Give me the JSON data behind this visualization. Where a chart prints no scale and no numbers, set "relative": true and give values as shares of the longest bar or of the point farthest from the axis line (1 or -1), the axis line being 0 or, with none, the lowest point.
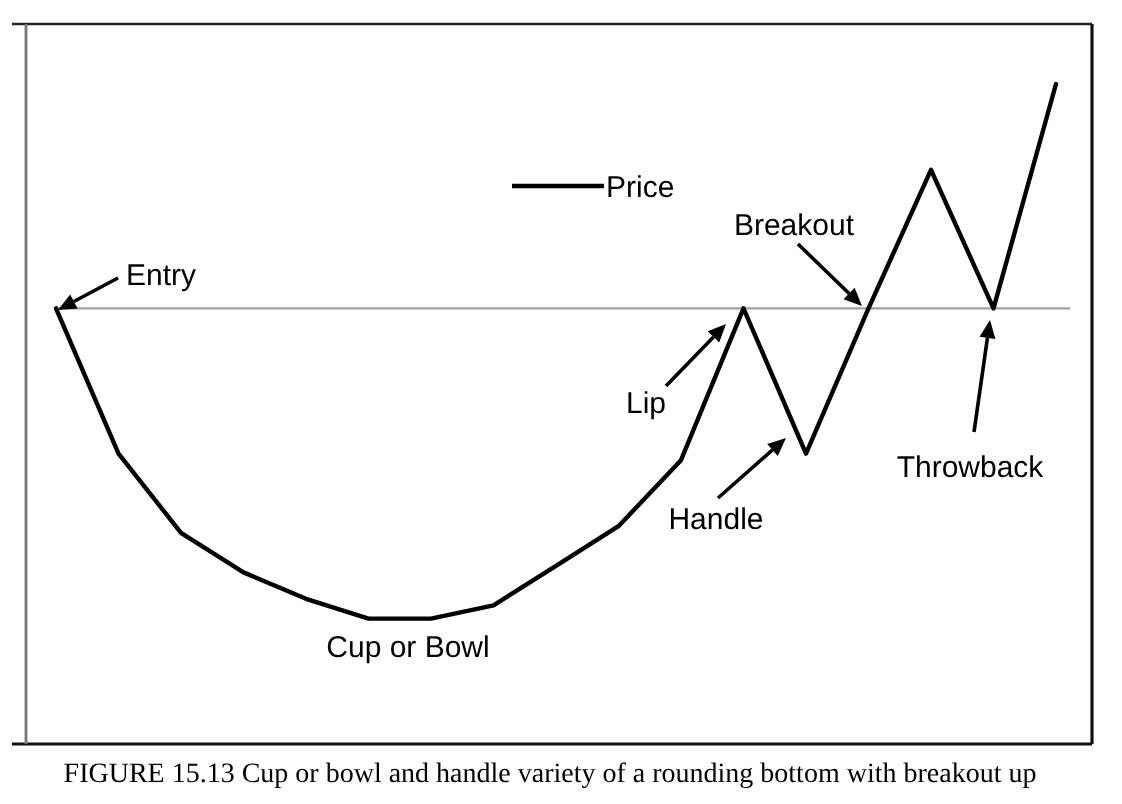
{
  "chart_data": {
    "type": "line",
    "relative": true,
    "categories": [
      null,
      null,
      null,
      null,
      null,
      null,
      null,
      null,
      null,
      null,
      null,
      null,
      null,
      null,
      null,
      null,
      null
    ],
    "series": [
      {
        "name": "Price",
        "color": "#000000",
        "values": [
          0.66,
          0.44,
          0.32,
          0.26,
          0.22,
          0.19,
          0.19,
          0.21,
          0.27,
          0.33,
          0.43,
          0.66,
          0.44,
          0.66,
          0.87,
          0.66,
          1
        ]
      }
    ],
    "ref_lines": [
      {
        "axis": "y",
        "value": 0.66,
        "color": "#a0a0a0"
      }
    ],
    "legend": "top",
    "annotations": [
      "Entry",
      "Breakout",
      "Lip",
      "Throwback",
      "Handle",
      "Cup or Bowl",
      "FIGURE 15.13 Cup or bowl and handle variety of a rounding bottom with breakout up"
    ]
  }
}
